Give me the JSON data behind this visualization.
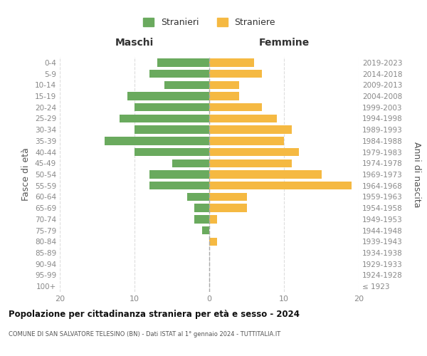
{
  "age_groups": [
    "100+",
    "95-99",
    "90-94",
    "85-89",
    "80-84",
    "75-79",
    "70-74",
    "65-69",
    "60-64",
    "55-59",
    "50-54",
    "45-49",
    "40-44",
    "35-39",
    "30-34",
    "25-29",
    "20-24",
    "15-19",
    "10-14",
    "5-9",
    "0-4"
  ],
  "birth_years": [
    "≤ 1923",
    "1924-1928",
    "1929-1933",
    "1934-1938",
    "1939-1943",
    "1944-1948",
    "1949-1953",
    "1954-1958",
    "1959-1963",
    "1964-1968",
    "1969-1973",
    "1974-1978",
    "1979-1983",
    "1984-1988",
    "1989-1993",
    "1994-1998",
    "1999-2003",
    "2004-2008",
    "2009-2013",
    "2014-2018",
    "2019-2023"
  ],
  "maschi": [
    0,
    0,
    0,
    0,
    0,
    1,
    2,
    2,
    3,
    8,
    8,
    5,
    10,
    14,
    10,
    12,
    10,
    11,
    6,
    8,
    7
  ],
  "femmine": [
    0,
    0,
    0,
    0,
    1,
    0,
    1,
    5,
    5,
    19,
    15,
    11,
    12,
    10,
    11,
    9,
    7,
    4,
    4,
    7,
    6
  ],
  "color_maschi": "#6aaa5e",
  "color_femmine": "#f5b942",
  "title_main": "Popolazione per cittadinanza straniera per età e sesso - 2024",
  "title_sub": "COMUNE DI SAN SALVATORE TELESINO (BN) - Dati ISTAT al 1° gennaio 2024 - TUTTITALIA.IT",
  "legend_maschi": "Stranieri",
  "legend_femmine": "Straniere",
  "label_left": "Maschi",
  "label_right": "Femmine",
  "ylabel_left": "Fasce di età",
  "ylabel_right": "Anni di nascita",
  "xlim": 20,
  "bg_color": "#ffffff",
  "grid_color": "#dddddd",
  "axis_label_color": "#555555",
  "tick_color": "#888888",
  "center_line_color": "#aaaaaa"
}
